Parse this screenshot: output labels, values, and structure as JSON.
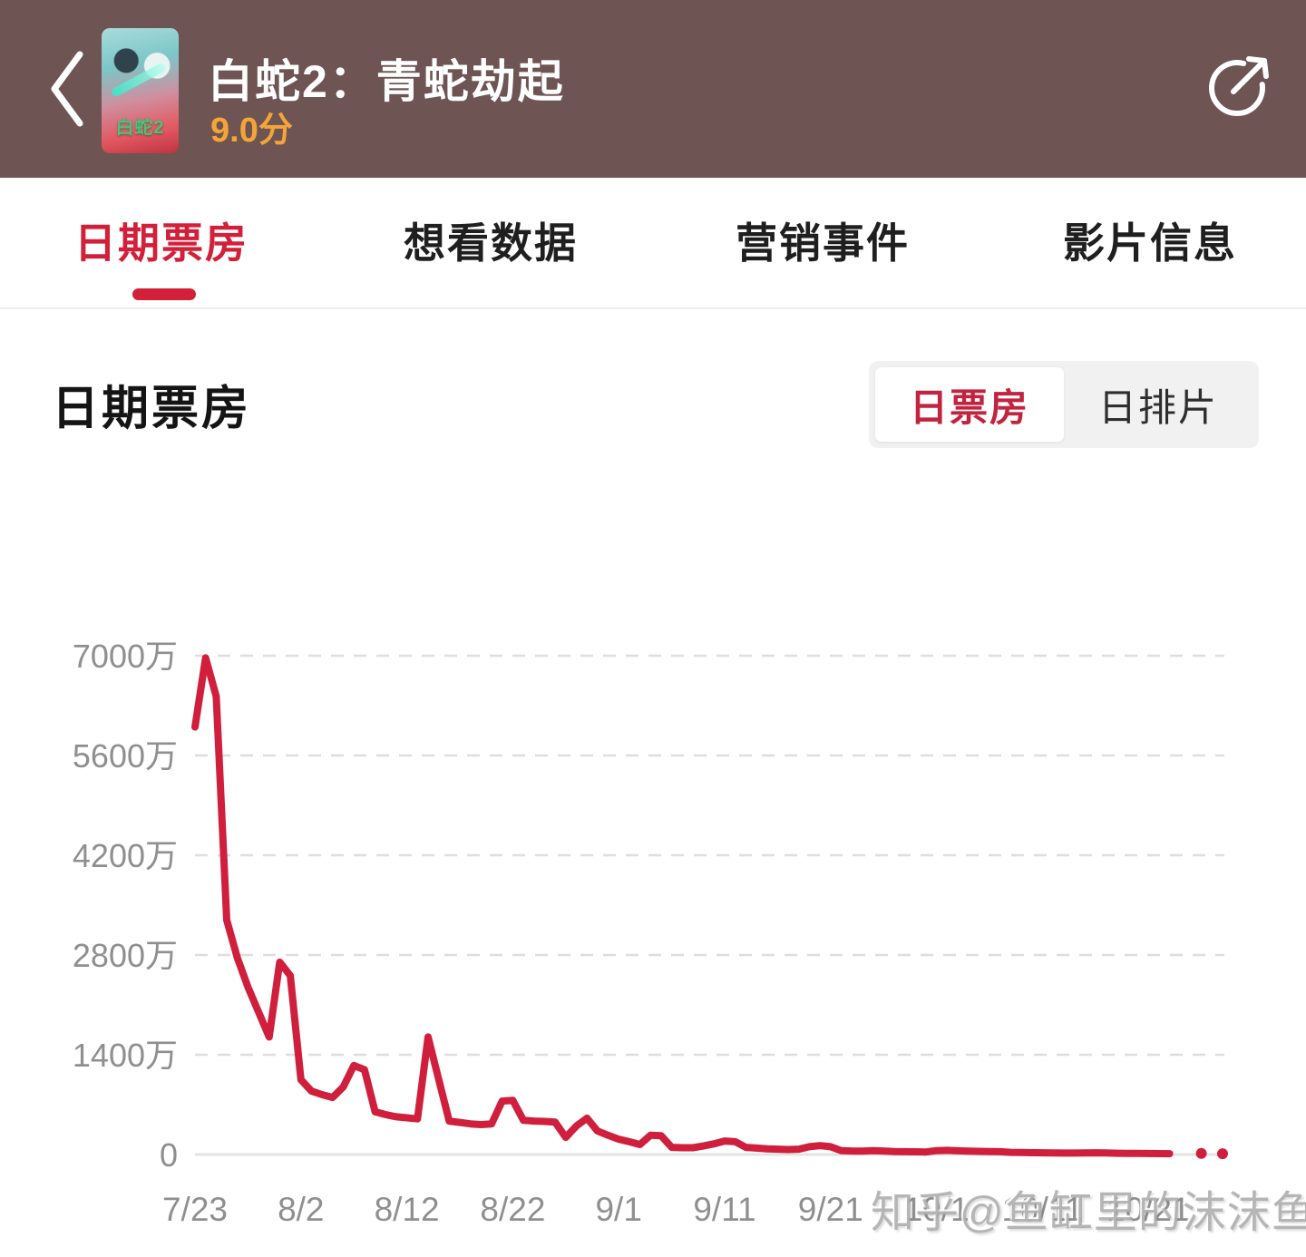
{
  "colors": {
    "header_bg": "#6e5452",
    "brand_red": "#d2203a",
    "line_red": "#cf1f3c",
    "rating_orange": "#f3a53a",
    "axis_gray": "#8f8f8f"
  },
  "header": {
    "title": "白蛇2：青蛇劫起",
    "rating": "9.0分",
    "poster_text": "白蛇2"
  },
  "tabs": [
    {
      "label": "日期票房",
      "active": true
    },
    {
      "label": "想看数据",
      "active": false
    },
    {
      "label": "营销事件",
      "active": false
    },
    {
      "label": "影片信息",
      "active": false
    }
  ],
  "section": {
    "title": "日期票房",
    "toggle": [
      {
        "label": "日票房",
        "active": true
      },
      {
        "label": "日排片",
        "active": false
      }
    ]
  },
  "watermark": "知乎@鱼缸里的沫沫鱼",
  "chart_data": {
    "type": "line",
    "title": "日期票房",
    "series_name": "日票房",
    "unit": "万",
    "ylim": [
      0,
      7000
    ],
    "grid": "dashed-horizontal",
    "color": "#cf1f3c",
    "yticks": [
      {
        "label": "0",
        "value": 0
      },
      {
        "label": "1400万",
        "value": 1400
      },
      {
        "label": "2800万",
        "value": 2800
      },
      {
        "label": "4200万",
        "value": 4200
      },
      {
        "label": "5600万",
        "value": 5600
      },
      {
        "label": "7000万",
        "value": 7000
      }
    ],
    "xticks": [
      {
        "label": "7/23",
        "index": 0
      },
      {
        "label": "8/2",
        "index": 10
      },
      {
        "label": "8/12",
        "index": 20
      },
      {
        "label": "8/22",
        "index": 30
      },
      {
        "label": "9/1",
        "index": 40
      },
      {
        "label": "9/11",
        "index": 50
      },
      {
        "label": "9/21",
        "index": 60
      },
      {
        "label": "10/1",
        "index": 70
      },
      {
        "label": "10/11",
        "index": 80
      },
      {
        "label": "10/21",
        "index": 90
      }
    ],
    "x": [
      "7/23",
      "7/24",
      "7/25",
      "7/26",
      "7/27",
      "7/28",
      "7/29",
      "7/30",
      "7/31",
      "8/1",
      "8/2",
      "8/3",
      "8/4",
      "8/5",
      "8/6",
      "8/7",
      "8/8",
      "8/9",
      "8/10",
      "8/11",
      "8/12",
      "8/13",
      "8/14",
      "8/15",
      "8/16",
      "8/17",
      "8/18",
      "8/19",
      "8/20",
      "8/21",
      "8/22",
      "8/23",
      "8/24",
      "8/25",
      "8/26",
      "8/27",
      "8/28",
      "8/29",
      "8/30",
      "8/31",
      "9/1",
      "9/2",
      "9/3",
      "9/4",
      "9/5",
      "9/6",
      "9/7",
      "9/8",
      "9/9",
      "9/10",
      "9/11",
      "9/12",
      "9/13",
      "9/14",
      "9/15",
      "9/16",
      "9/17",
      "9/18",
      "9/19",
      "9/20",
      "9/21",
      "9/22",
      "9/23",
      "9/24",
      "9/25",
      "9/26",
      "9/27",
      "9/28",
      "9/29",
      "9/30",
      "10/1",
      "10/2",
      "10/3",
      "10/4",
      "10/5",
      "10/6",
      "10/7",
      "10/8",
      "10/9",
      "10/10",
      "10/11",
      "10/12",
      "10/13",
      "10/14",
      "10/15",
      "10/16",
      "10/17",
      "10/18",
      "10/19",
      "10/20",
      "10/21",
      "10/22",
      "10/23",
      "10/24",
      "10/25",
      "10/26",
      "10/27",
      "10/28"
    ],
    "values": [
      6000,
      6970,
      6430,
      3290,
      2760,
      2350,
      2000,
      1650,
      2700,
      2510,
      1050,
      890,
      840,
      800,
      950,
      1250,
      1190,
      600,
      560,
      530,
      515,
      500,
      1650,
      1060,
      470,
      450,
      430,
      420,
      430,
      750,
      760,
      480,
      470,
      465,
      455,
      240,
      400,
      510,
      330,
      270,
      215,
      180,
      140,
      270,
      265,
      100,
      95,
      95,
      120,
      150,
      190,
      180,
      100,
      90,
      80,
      75,
      70,
      75,
      110,
      125,
      110,
      55,
      50,
      48,
      55,
      50,
      42,
      40,
      38,
      36,
      55,
      58,
      52,
      48,
      45,
      42,
      40,
      30,
      28,
      26,
      24,
      22,
      20,
      20,
      22,
      24,
      22,
      18,
      16,
      15,
      14,
      13,
      12,
      null,
      null,
      15,
      null,
      12
    ]
  }
}
